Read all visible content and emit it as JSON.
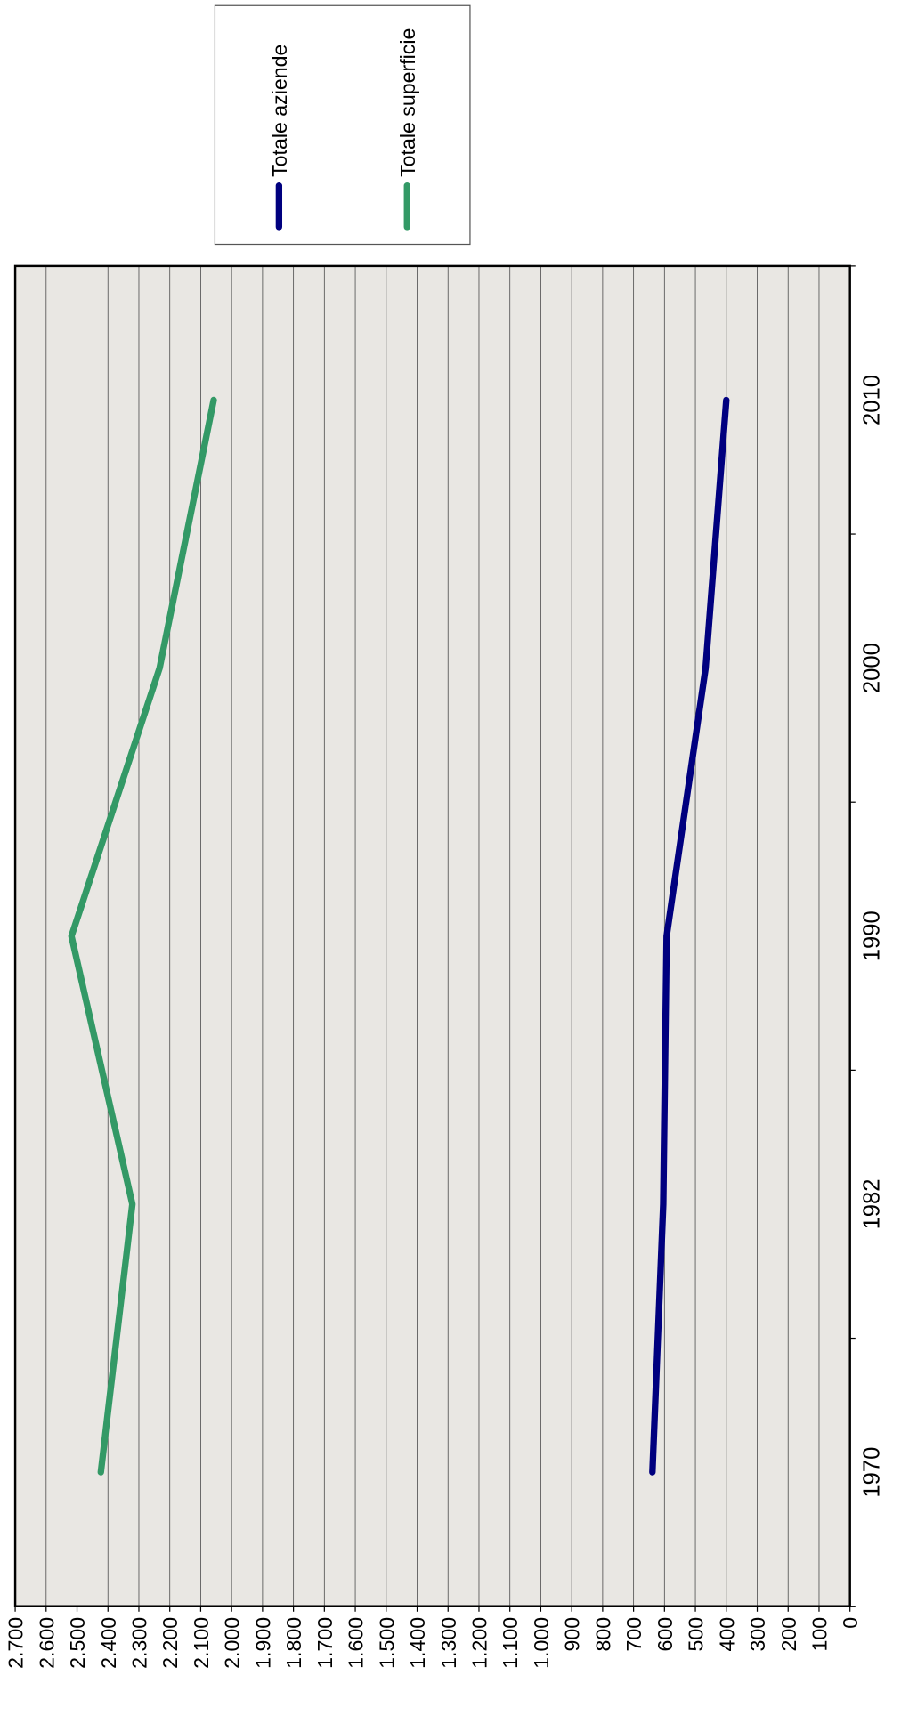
{
  "chart_data": {
    "type": "line",
    "categories": [
      "1970",
      "1982",
      "1990",
      "2000",
      "2010"
    ],
    "series": [
      {
        "name": "Totale aziende",
        "color": "#00007f",
        "values": [
          639,
          604,
          593,
          467,
          400
        ]
      },
      {
        "name": "Totale superficie",
        "color": "#339966",
        "values": [
          2423,
          2321,
          2518,
          2233,
          2058
        ]
      }
    ],
    "ylim": [
      0,
      2700
    ],
    "yticks": [
      0,
      100,
      200,
      300,
      400,
      500,
      600,
      700,
      800,
      900,
      {
        "value": 1000,
        "label": "1.000"
      },
      {
        "value": 1100,
        "label": "1.100"
      },
      {
        "value": 1200,
        "label": "1.200"
      },
      {
        "value": 1300,
        "label": "1.300"
      },
      {
        "value": 1400,
        "label": "1.400"
      },
      {
        "value": 1500,
        "label": "1.500"
      },
      {
        "value": 1600,
        "label": "1.600"
      },
      {
        "value": 1700,
        "label": "1.700"
      },
      {
        "value": 1800,
        "label": "1.800"
      },
      {
        "value": 1900,
        "label": "1.900"
      },
      {
        "value": 2000,
        "label": "2.000"
      },
      {
        "value": 2100,
        "label": "2.100"
      },
      {
        "value": 2200,
        "label": "2.200"
      },
      {
        "value": 2300,
        "label": "2.300"
      },
      {
        "value": 2400,
        "label": "2.400"
      },
      {
        "value": 2500,
        "label": "2.500"
      },
      {
        "value": 2600,
        "label": "2.600"
      },
      {
        "value": 2700,
        "label": "2.700"
      }
    ],
    "grid": true
  }
}
